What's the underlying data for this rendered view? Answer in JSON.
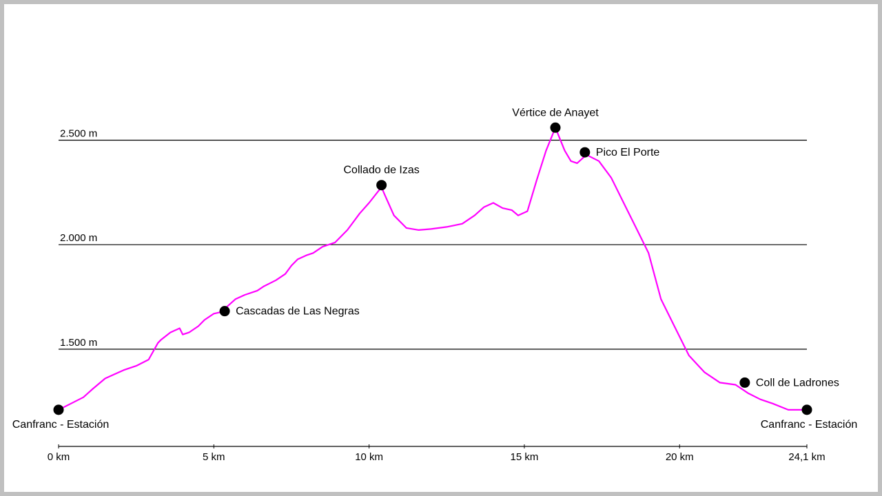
{
  "chart_data": {
    "type": "line",
    "title": "",
    "xlabel": "",
    "ylabel": "",
    "xlim": [
      0,
      24.1
    ],
    "ylim": [
      1170,
      2640
    ],
    "grid": "horizontal lines at 1500, 2000, 2500",
    "line_color": "#ff00ff",
    "ytick_values": [
      1500,
      2000,
      2500
    ],
    "ytick_labels": [
      "1.500 m",
      "2.000 m",
      "2.500 m"
    ],
    "xtick_values": [
      0,
      5,
      10,
      15,
      20,
      24.1
    ],
    "xtick_labels": [
      "0 km",
      "5 km",
      "10 km",
      "15 km",
      "20 km",
      "24,1 km"
    ],
    "series": [
      {
        "x": [
          0,
          0.4,
          0.8,
          1.1,
          1.5,
          1.8,
          2.1,
          2.5,
          2.9,
          3.2,
          3.3,
          3.6,
          3.9,
          4.0,
          4.2,
          4.5,
          4.7,
          5.0,
          5.3,
          5.4,
          5.7,
          6.0,
          6.4,
          6.6,
          7.0,
          7.3,
          7.5,
          7.7,
          8.0,
          8.2,
          8.5,
          8.9,
          9.3,
          9.7,
          10.0,
          10.4,
          10.5,
          10.8,
          11.2,
          11.6,
          12.0,
          12.5,
          13.0,
          13.4,
          13.7,
          14.0,
          14.3,
          14.6,
          14.8,
          15.1,
          15.4,
          15.7,
          16.0,
          16.3,
          16.5,
          16.7,
          17.0,
          17.4,
          17.8,
          18.2,
          18.6,
          19.0,
          19.4,
          19.8,
          20.3,
          20.8,
          21.3,
          21.8,
          22.2,
          22.6,
          23.0,
          23.5,
          24.1
        ],
        "y": [
          1210,
          1240,
          1270,
          1310,
          1360,
          1380,
          1400,
          1420,
          1450,
          1530,
          1545,
          1580,
          1600,
          1570,
          1580,
          1610,
          1640,
          1670,
          1680,
          1700,
          1740,
          1760,
          1780,
          1800,
          1830,
          1860,
          1900,
          1930,
          1950,
          1960,
          1990,
          2010,
          2070,
          2150,
          2200,
          2275,
          2240,
          2140,
          2080,
          2070,
          2075,
          2085,
          2100,
          2140,
          2180,
          2200,
          2175,
          2165,
          2140,
          2160,
          2310,
          2450,
          2560,
          2450,
          2400,
          2390,
          2430,
          2400,
          2320,
          2200,
          2080,
          1960,
          1740,
          1620,
          1470,
          1390,
          1340,
          1330,
          1290,
          1260,
          1240,
          1210,
          1210
        ]
      }
    ],
    "waypoints": [
      {
        "label": "Canfranc - Estación",
        "x": 0,
        "y": 1210
      },
      {
        "label": "Cascadas de Las Negras",
        "x": 5.35,
        "y": 1682
      },
      {
        "label": "Collado de Izas",
        "x": 10.4,
        "y": 2285
      },
      {
        "label": "Vértice de Anayet",
        "x": 16.0,
        "y": 2560
      },
      {
        "label": "Pico El Porte",
        "x": 16.95,
        "y": 2442
      },
      {
        "label": "Coll de Ladrones",
        "x": 22.1,
        "y": 1340
      },
      {
        "label": "Canfranc - Estación",
        "x": 24.1,
        "y": 1210
      }
    ]
  }
}
